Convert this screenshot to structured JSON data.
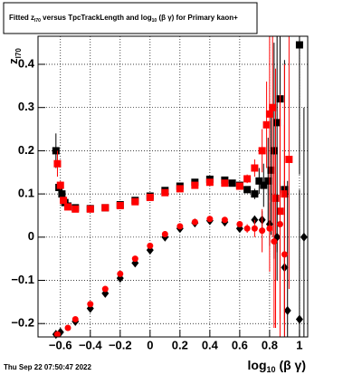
{
  "chart_data": {
    "type": "scatter",
    "title": [
      "Fitted  z",
      "I70",
      "  versus TpcTrackLength and log",
      "10",
      " (β  γ) for Primary kaon+"
    ],
    "y_label": [
      "z",
      "I70"
    ],
    "x_label": [
      "log",
      "10",
      " (β γ)"
    ],
    "date": "Thu Sep 22 07:50:47 2022",
    "xlim": [
      -0.75,
      1.055
    ],
    "ylim": [
      -0.231,
      0.465
    ],
    "xticks": [
      {
        "value": -0.6,
        "label": "−0.6"
      },
      {
        "value": -0.4,
        "label": "−0.4"
      },
      {
        "value": -0.2,
        "label": "−0.2"
      },
      0,
      0.2,
      0.4,
      0.6,
      0.8,
      1
    ],
    "yticks": [
      {
        "value": -0.2,
        "label": "−0.2"
      },
      {
        "value": -0.1,
        "label": "−0.1"
      },
      0,
      0.1,
      0.2,
      0.3,
      0.4
    ],
    "grid": true,
    "series": [
      {
        "color": "#000000",
        "marker": "square",
        "x": [
          -0.63,
          -0.61,
          -0.59,
          -0.57,
          -0.55,
          -0.5,
          -0.4,
          -0.3,
          -0.2,
          -0.1,
          0,
          0.1,
          0.2,
          0.3,
          0.4,
          0.5,
          0.55,
          0.6,
          0.65,
          0.7,
          0.73,
          0.76,
          0.79,
          0.81,
          0.83,
          0.85,
          0.87,
          0.9,
          1.0
        ],
        "values": [
          0.2,
          0.115,
          0.1,
          0.08,
          0.072,
          0.068,
          0.066,
          0.068,
          0.075,
          0.085,
          0.095,
          0.108,
          0.118,
          0.127,
          0.134,
          0.132,
          0.125,
          0.12,
          0.11,
          0.1,
          0.13,
          0.12,
          0.13,
          0.155,
          0.2,
          0.265,
          0.32,
          0.11,
          0.445
        ],
        "errors": [
          0.04,
          0.01,
          0.005,
          0.003,
          0.002,
          0.002,
          0.002,
          0.002,
          0.002,
          0.002,
          0.002,
          0.002,
          0.002,
          0.002,
          0.002,
          0.003,
          0.004,
          0.005,
          0.008,
          0.012,
          0.03,
          0.05,
          0.1,
          0.15,
          0.25,
          0.3,
          0.3,
          0.3,
          0.3
        ]
      },
      {
        "color": "#ff0000",
        "marker": "square",
        "x": [
          -0.62,
          -0.6,
          -0.58,
          -0.55,
          -0.5,
          -0.4,
          -0.3,
          -0.2,
          -0.1,
          0,
          0.1,
          0.2,
          0.3,
          0.4,
          0.5,
          0.6,
          0.65,
          0.7,
          0.75,
          0.78,
          0.8,
          0.82,
          0.84,
          0.87,
          0.9,
          0.93
        ],
        "values": [
          0.17,
          0.12,
          0.085,
          0.07,
          0.065,
          0.065,
          0.068,
          0.073,
          0.082,
          0.092,
          0.103,
          0.112,
          0.12,
          0.127,
          0.125,
          0.118,
          0.135,
          0.16,
          0.2,
          0.26,
          0.285,
          0.3,
          0.09,
          0.06,
          0.1,
          0.18
        ],
        "errors": [
          0.03,
          0.01,
          0.004,
          0.002,
          0.002,
          0.002,
          0.002,
          0.002,
          0.002,
          0.002,
          0.002,
          0.002,
          0.002,
          0.002,
          0.003,
          0.005,
          0.01,
          0.02,
          0.05,
          0.1,
          0.2,
          0.3,
          0.3,
          0.25,
          0.3,
          0.3
        ]
      },
      {
        "color": "#000000",
        "marker": "diamond",
        "x": [
          -0.63,
          -0.6,
          -0.5,
          -0.4,
          -0.3,
          -0.2,
          -0.1,
          0,
          0.1,
          0.2,
          0.3,
          0.4,
          0.5,
          0.6,
          0.7,
          0.75,
          0.8,
          0.85,
          0.9,
          0.92,
          1.0,
          1.03
        ],
        "values": [
          -0.225,
          -0.22,
          -0.195,
          -0.165,
          -0.13,
          -0.095,
          -0.06,
          -0.03,
          0.0,
          0.02,
          0.033,
          0.038,
          0.035,
          0.02,
          0.04,
          0.04,
          0.03,
          0.0,
          -0.07,
          -0.17,
          -0.19,
          0.0
        ],
        "errors": [
          0.005,
          0.004,
          0.003,
          0.002,
          0.002,
          0.002,
          0.002,
          0.002,
          0.002,
          0.002,
          0.002,
          0.002,
          0.003,
          0.004,
          0.01,
          0.02,
          0.05,
          0.1,
          0.2,
          0.3,
          0.3,
          0.3
        ]
      },
      {
        "color": "#ff0000",
        "marker": "circle",
        "x": [
          -0.62,
          -0.55,
          -0.5,
          -0.4,
          -0.3,
          -0.2,
          -0.1,
          0,
          0.1,
          0.2,
          0.3,
          0.4,
          0.5,
          0.6,
          0.65,
          0.7,
          0.75,
          0.8,
          0.83,
          0.87,
          0.9
        ],
        "values": [
          -0.225,
          -0.21,
          -0.19,
          -0.155,
          -0.12,
          -0.085,
          -0.05,
          -0.02,
          0.007,
          0.025,
          0.035,
          0.042,
          0.04,
          0.03,
          0.02,
          0.02,
          0.015,
          0.02,
          -0.01,
          0.03,
          -0.04
        ],
        "errors": [
          0.005,
          0.003,
          0.003,
          0.002,
          0.002,
          0.002,
          0.002,
          0.002,
          0.002,
          0.002,
          0.002,
          0.002,
          0.003,
          0.005,
          0.01,
          0.02,
          0.05,
          0.1,
          0.2,
          0.3,
          0.3
        ]
      }
    ]
  }
}
